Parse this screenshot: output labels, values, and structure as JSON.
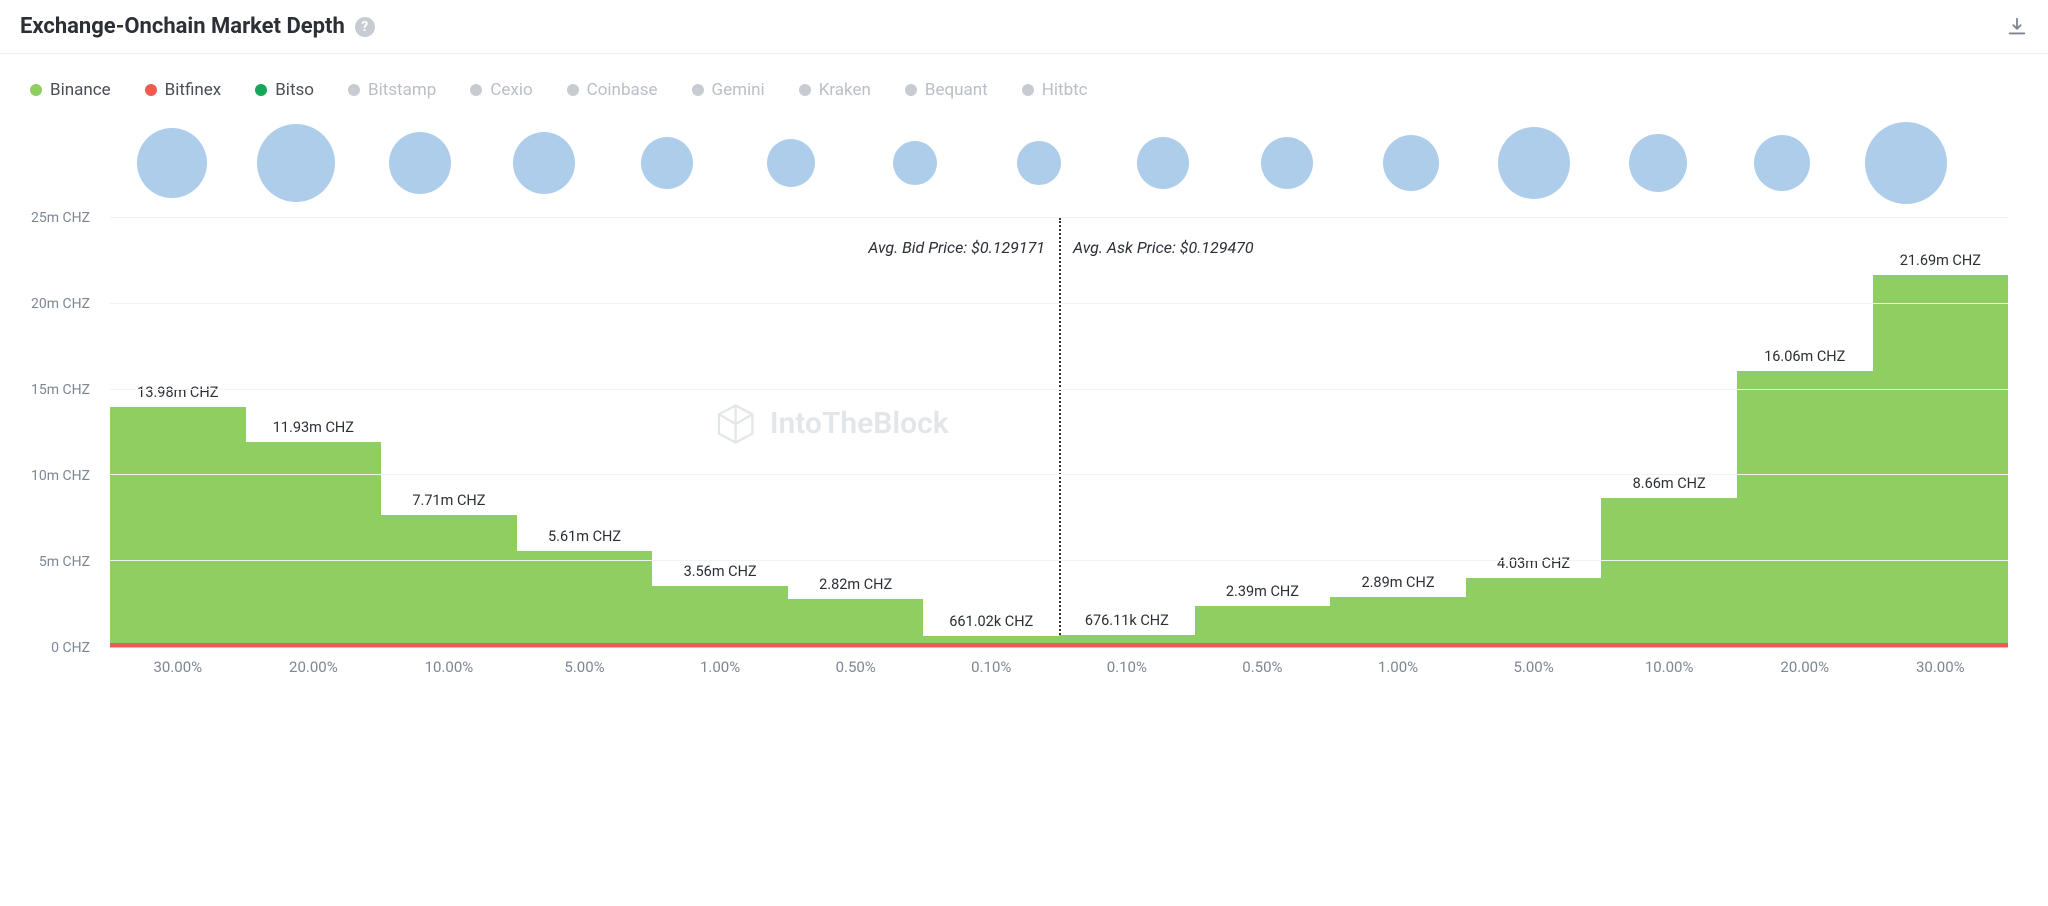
{
  "header": {
    "title": "Exchange-Onchain Market Depth"
  },
  "colors": {
    "bar_fill": "#8fce61",
    "secondary_line": "#f05b4f",
    "bubble_fill": "#aecdeb",
    "axis_text": "#7d8793",
    "grid": "#f2f2f2",
    "title_text": "#2b2f36",
    "inactive_legend": "#b9bfc6",
    "active_legend": "#4a4f57"
  },
  "legend": [
    {
      "label": "Binance",
      "color": "#8fce61",
      "active": true
    },
    {
      "label": "Bitfinex",
      "color": "#f05b4f",
      "active": true
    },
    {
      "label": "Bitso",
      "color": "#18a65a",
      "active": true
    },
    {
      "label": "Bitstamp",
      "color": "#c7ccd2",
      "active": false
    },
    {
      "label": "Cexio",
      "color": "#c7ccd2",
      "active": false
    },
    {
      "label": "Coinbase",
      "color": "#c7ccd2",
      "active": false
    },
    {
      "label": "Gemini",
      "color": "#c7ccd2",
      "active": false
    },
    {
      "label": "Kraken",
      "color": "#c7ccd2",
      "active": false
    },
    {
      "label": "Bequant",
      "color": "#c7ccd2",
      "active": false
    },
    {
      "label": "Hitbtc",
      "color": "#c7ccd2",
      "active": false
    }
  ],
  "bubbles": {
    "diameters": [
      70,
      78,
      62,
      62,
      52,
      48,
      44,
      44,
      52,
      52,
      56,
      72,
      58,
      56,
      82
    ]
  },
  "chart": {
    "y_max": 25,
    "y_ticks": [
      {
        "v": 0,
        "label": "0 CHZ"
      },
      {
        "v": 5,
        "label": "5m CHZ"
      },
      {
        "v": 10,
        "label": "10m CHZ"
      },
      {
        "v": 15,
        "label": "15m CHZ"
      },
      {
        "v": 20,
        "label": "20m CHZ"
      },
      {
        "v": 25,
        "label": "25m CHZ"
      }
    ],
    "avg_bid_label": "Avg. Bid Price: $0.129171",
    "avg_ask_label": "Avg. Ask Price: $0.129470",
    "watermark": "IntoTheBlock",
    "x_labels": [
      "30.00%",
      "20.00%",
      "10.00%",
      "5.00%",
      "1.00%",
      "0.50%",
      "0.10%",
      "0.10%",
      "0.50%",
      "1.00%",
      "5.00%",
      "10.00%",
      "20.00%",
      "30.00%"
    ],
    "bars": [
      {
        "value": 13.98,
        "label": "13.98m CHZ"
      },
      {
        "value": 11.93,
        "label": "11.93m CHZ"
      },
      {
        "value": 7.71,
        "label": "7.71m CHZ"
      },
      {
        "value": 5.61,
        "label": "5.61m CHZ"
      },
      {
        "value": 3.56,
        "label": "3.56m CHZ"
      },
      {
        "value": 2.82,
        "label": "2.82m CHZ"
      },
      {
        "value": 0.661,
        "label": "661.02k CHZ"
      },
      {
        "value": 0.676,
        "label": "676.11k CHZ"
      },
      {
        "value": 2.39,
        "label": "2.39m CHZ"
      },
      {
        "value": 2.89,
        "label": "2.89m CHZ"
      },
      {
        "value": 4.03,
        "label": "4.03m CHZ"
      },
      {
        "value": 8.66,
        "label": "8.66m CHZ"
      },
      {
        "value": 16.06,
        "label": "16.06m CHZ"
      },
      {
        "value": 21.69,
        "label": "21.69m CHZ"
      }
    ]
  }
}
